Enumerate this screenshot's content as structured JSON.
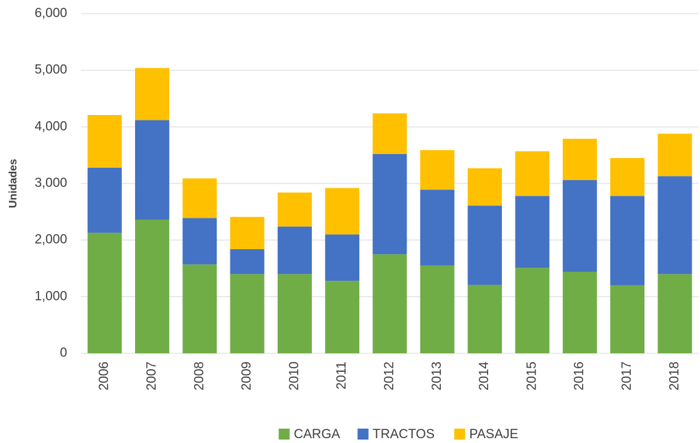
{
  "chart_data": {
    "type": "stacked_bar",
    "y_label": "Unidades",
    "categories": [
      "2006",
      "2007",
      "2008",
      "2009",
      "2010",
      "2011",
      "2012",
      "2013",
      "2014",
      "2015",
      "2016",
      "2017",
      "2018"
    ],
    "series": [
      {
        "name": "CARGA",
        "color": "#70ad47",
        "values": [
          2130,
          2360,
          1570,
          1400,
          1400,
          1280,
          1750,
          1550,
          1210,
          1510,
          1440,
          1200,
          1400
        ]
      },
      {
        "name": "TRACTOS",
        "color": "#4472c4",
        "values": [
          1150,
          1760,
          820,
          440,
          840,
          820,
          1770,
          1340,
          1400,
          1270,
          1620,
          1580,
          1730
        ]
      },
      {
        "name": "PASAJE",
        "color": "#ffc000",
        "values": [
          930,
          920,
          700,
          570,
          600,
          820,
          720,
          700,
          660,
          790,
          730,
          670,
          750
        ]
      }
    ],
    "ylim": [
      0,
      6000
    ],
    "yticks": [
      0,
      {
        "value": 1000,
        "label": "1,000"
      },
      {
        "value": 2000,
        "label": "2,000"
      },
      {
        "value": 3000,
        "label": "3,000"
      },
      {
        "value": 4000,
        "label": "4,000"
      },
      {
        "value": 5000,
        "label": "5,000"
      },
      {
        "value": 6000,
        "label": "6,000"
      }
    ],
    "grid": true,
    "legend": "bottom"
  }
}
